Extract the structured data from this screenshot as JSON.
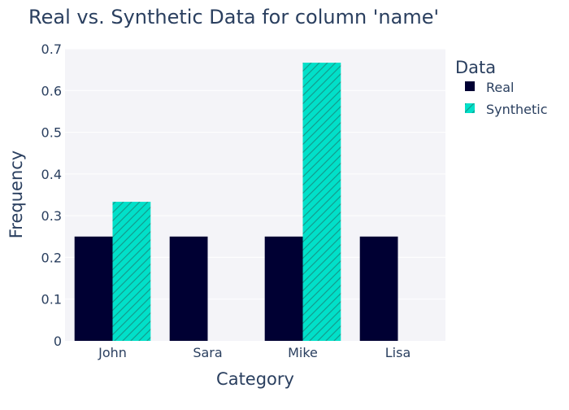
{
  "chart_data": {
    "type": "bar",
    "title": "Real vs. Synthetic Data for column 'name'",
    "xlabel": "Category",
    "ylabel": "Frequency",
    "categories": [
      "John",
      "Sara",
      "Mike",
      "Lisa"
    ],
    "ylim": [
      0,
      0.7
    ],
    "yticks": [
      0,
      0.1,
      0.2,
      0.3,
      0.4,
      0.5,
      0.6,
      0.7
    ],
    "grid": true,
    "legend": {
      "title": "Data",
      "placement": "top-right-outside"
    },
    "series": [
      {
        "name": "Real",
        "color": "#000033",
        "pattern": "solid",
        "values": [
          0.25,
          0.25,
          0.25,
          0.25
        ]
      },
      {
        "name": "Synthetic",
        "color": "#01e0c9",
        "pattern": "diagonal-hatch",
        "values": [
          0.3333,
          0,
          0.6667,
          0
        ]
      }
    ],
    "colors": {
      "plot_background": "#f4f4f8",
      "gridline": "#ffffff",
      "text": "#2a3f5f"
    }
  }
}
